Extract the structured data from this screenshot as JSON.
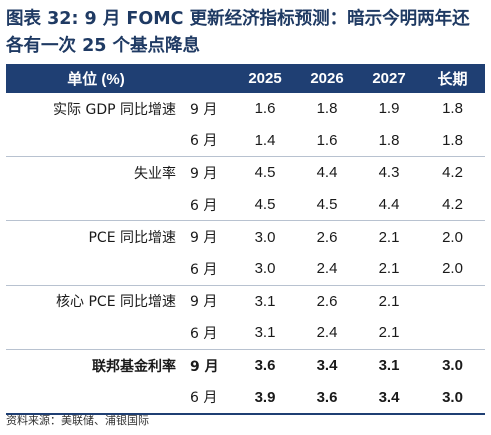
{
  "title": {
    "label": "图表 32:",
    "text": "9 月 FOMC 更新经济指标预测：暗示今明两年还各有一次 25 个基点降息"
  },
  "table": {
    "headers": [
      "单位 (%)",
      "",
      "2025",
      "2026",
      "2027",
      "长期"
    ],
    "rows": [
      {
        "indicator": "实际 GDP 同比增速",
        "month": "9 月",
        "values": [
          "1.6",
          "1.8",
          "1.9",
          "1.8"
        ]
      },
      {
        "indicator": "",
        "month": "6 月",
        "values": [
          "1.4",
          "1.6",
          "1.8",
          "1.8"
        ]
      },
      {
        "indicator": "失业率",
        "month": "9 月",
        "values": [
          "4.5",
          "4.4",
          "4.3",
          "4.2"
        ]
      },
      {
        "indicator": "",
        "month": "6 月",
        "values": [
          "4.5",
          "4.5",
          "4.4",
          "4.2"
        ]
      },
      {
        "indicator": "PCE 同比增速",
        "month": "9 月",
        "values": [
          "3.0",
          "2.6",
          "2.1",
          "2.0"
        ]
      },
      {
        "indicator": "",
        "month": "6 月",
        "values": [
          "3.0",
          "2.4",
          "2.1",
          "2.0"
        ]
      },
      {
        "indicator": "核心 PCE 同比增速",
        "month": "9 月",
        "values": [
          "3.1",
          "2.6",
          "2.1",
          ""
        ]
      },
      {
        "indicator": "",
        "month": "6 月",
        "values": [
          "3.1",
          "2.4",
          "2.1",
          ""
        ]
      },
      {
        "indicator": "联邦基金利率",
        "month": "9 月",
        "values": [
          "3.6",
          "3.4",
          "3.1",
          "3.0"
        ]
      },
      {
        "indicator": "",
        "month": "6 月",
        "values": [
          "3.9",
          "3.6",
          "3.4",
          "3.0"
        ]
      }
    ]
  },
  "source": "资料来源：美联储、浦银国际"
}
